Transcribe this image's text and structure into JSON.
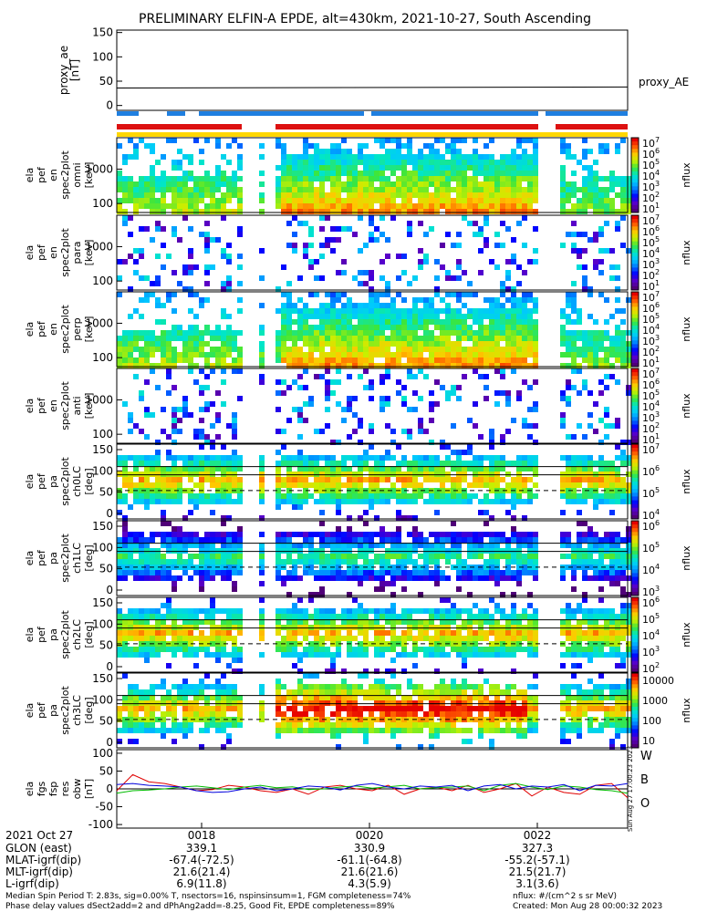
{
  "title": "PRELIMINARY ELFIN-A EPDE, alt=430km, 2021-10-27, South Ascending",
  "chart_data": {
    "type": "heatmap",
    "proxy_ae": {
      "ylabel": [
        "proxy_ae",
        "[nT]"
      ],
      "yticks": [
        "150",
        "100",
        "50",
        "0"
      ],
      "ylim": [
        -10,
        155
      ],
      "legend": "proxy_AE",
      "x": [
        0,
        1
      ],
      "y": [
        36,
        38
      ]
    },
    "bar_colors": {
      "blue": "#1f7fe0",
      "red": "#dd1111",
      "yellow": "#ffd700"
    },
    "spectrograms": [
      {
        "ylabel": [
          "ela",
          "pef",
          "en",
          "spec2plot",
          "omni",
          "[keV]"
        ],
        "yticks": [
          "1000",
          "100"
        ],
        "cbar": [
          "10",
          "7",
          "10",
          "6",
          "10",
          "5",
          "10",
          "4",
          "10",
          "3",
          "10",
          "2",
          "10",
          "1"
        ],
        "cbar_label": "nflux"
      },
      {
        "ylabel": [
          "ela",
          "pef",
          "en",
          "spec2plot",
          "para",
          "[keV]"
        ],
        "yticks": [
          "1000",
          "100"
        ],
        "cbar": [
          "10",
          "7",
          "10",
          "6",
          "10",
          "5",
          "10",
          "4",
          "10",
          "3",
          "10",
          "2",
          "10",
          "1"
        ],
        "cbar_label": "nflux"
      },
      {
        "ylabel": [
          "ela",
          "pef",
          "en",
          "spec2plot",
          "perp",
          "[keV]"
        ],
        "yticks": [
          "1000",
          "100"
        ],
        "cbar": [
          "10",
          "7",
          "10",
          "6",
          "10",
          "5",
          "10",
          "4",
          "10",
          "3",
          "10",
          "2",
          "10",
          "1"
        ],
        "cbar_label": "nflux"
      },
      {
        "ylabel": [
          "ela",
          "pef",
          "en",
          "spec2plot",
          "anti",
          "[keV]"
        ],
        "yticks": [
          "1000",
          "100"
        ],
        "cbar": [
          "10",
          "7",
          "10",
          "6",
          "10",
          "5",
          "10",
          "4",
          "10",
          "3",
          "10",
          "2",
          "10",
          "1"
        ],
        "cbar_label": "nflux"
      },
      {
        "ylabel": [
          "ela",
          "pef",
          "pa",
          "spec2plot",
          "ch0LC",
          "[deg]"
        ],
        "yticks": [
          "150",
          "100",
          "50",
          "0"
        ],
        "cbar": [
          "10",
          "7",
          "10",
          "6",
          "10",
          "5",
          "10",
          "4"
        ],
        "cbar_label": "nflux"
      },
      {
        "ylabel": [
          "ela",
          "pef",
          "pa",
          "spec2plot",
          "ch1LC",
          "[deg]"
        ],
        "yticks": [
          "150",
          "100",
          "50",
          "0"
        ],
        "cbar": [
          "10",
          "6",
          "10",
          "5",
          "10",
          "4",
          "10",
          "3"
        ],
        "cbar_label": "nflux"
      },
      {
        "ylabel": [
          "ela",
          "pef",
          "pa",
          "spec2plot",
          "ch2LC",
          "[deg]"
        ],
        "yticks": [
          "150",
          "100",
          "50",
          "0"
        ],
        "cbar": [
          "10",
          "6",
          "10",
          "5",
          "10",
          "4",
          "10",
          "3",
          "10",
          "2"
        ],
        "cbar_label": "nflux"
      },
      {
        "ylabel": [
          "ela",
          "pef",
          "pa",
          "spec2plot",
          "ch3LC",
          "[deg]"
        ],
        "yticks": [
          "150",
          "100",
          "50",
          "0"
        ],
        "cbar": [
          "10000",
          "1000",
          "100",
          "10"
        ],
        "cbar_label": "nflux"
      }
    ],
    "fgs": {
      "ylabel": [
        "ela",
        "fgs",
        "fsp",
        "res",
        "obw",
        "[nT]"
      ],
      "yticks": [
        "100",
        "50",
        "0",
        "-50",
        "-100"
      ],
      "ylim": [
        -110,
        110
      ],
      "legend": [
        "W",
        "B",
        "O"
      ],
      "legend_colors": [
        "#e00000",
        "#00bb00",
        "#0000dd"
      ],
      "side_text": "Sun Aug 27 17:00:23 2023",
      "series": [
        {
          "name": "W",
          "color": "#e00000",
          "y": [
            -5,
            40,
            20,
            15,
            5,
            -5,
            -2,
            10,
            5,
            -5,
            -10,
            0,
            -15,
            5,
            10,
            0,
            -5,
            10,
            -15,
            0,
            5,
            -5,
            10,
            -10,
            0,
            15,
            -20,
            5,
            -10,
            -15,
            10,
            15,
            -25
          ]
        },
        {
          "name": "B",
          "color": "#00bb00",
          "y": [
            -12,
            -5,
            -3,
            0,
            5,
            8,
            3,
            -2,
            5,
            10,
            3,
            6,
            -2,
            0,
            5,
            8,
            2,
            6,
            10,
            0,
            3,
            5,
            8,
            -5,
            10,
            15,
            5,
            -2,
            8,
            5,
            -2,
            -5,
            -12
          ]
        },
        {
          "name": "O",
          "color": "#0000dd",
          "y": [
            12,
            15,
            10,
            8,
            5,
            -5,
            -10,
            -8,
            0,
            5,
            -5,
            0,
            8,
            5,
            -3,
            10,
            15,
            5,
            0,
            8,
            5,
            10,
            -5,
            8,
            12,
            0,
            8,
            5,
            12,
            -5,
            10,
            8,
            15
          ]
        }
      ]
    },
    "x_ticks": [
      "0018",
      "0020",
      "0022"
    ]
  },
  "ephemeris": {
    "row_labels": [
      "2021 Oct 27",
      "GLON (east)",
      "MLAT-igrf(dip)",
      "MLT-igrf(dip)",
      "L-igrf(dip)"
    ],
    "columns": [
      [
        "0018",
        "339.1",
        "-67.4(-72.5)",
        "21.6(21.4)",
        "6.9(11.8)"
      ],
      [
        "0020",
        "330.9",
        "-61.1(-64.8)",
        "21.6(21.6)",
        "4.3(5.9)"
      ],
      [
        "0022",
        "327.3",
        "-55.2(-57.1)",
        "21.5(21.7)",
        "3.1(3.6)"
      ]
    ]
  },
  "footer": {
    "line1": "Median Spin Period T: 2.83s, sig=0.00% T, nsectors=16, nspinsinsum=1, FGM completeness=74%",
    "line2": "Phase delay values dSect2add=2 and dPhAng2add=-8.25, Good Fit, EPDE completeness=89%",
    "units": "nflux: #/(cm^2 s sr MeV)",
    "created": "Created: Mon Aug 28 00:00:32 2023"
  }
}
